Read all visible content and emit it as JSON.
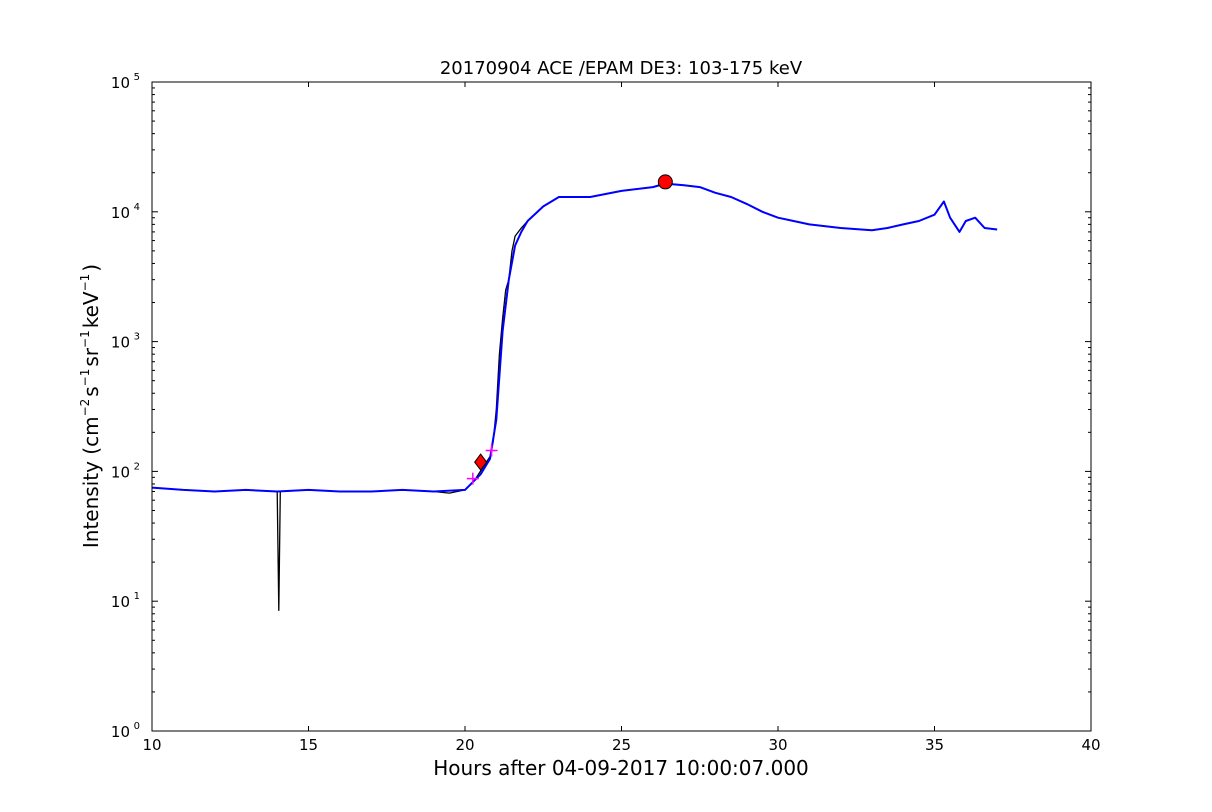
{
  "chart_data": {
    "type": "line",
    "title": "20170904 ACE /EPAM DE3: 103-175 keV",
    "xlabel": "Hours after 04-09-2017 10:00:07.000",
    "ylabel": {
      "prefix": "Intensity (cm",
      "sup1": "−2",
      "mid1": "s",
      "sup2": "−1",
      "mid2": "sr",
      "sup3": "−1",
      "mid3": "keV",
      "sup4": "−1",
      "suffix": ")"
    },
    "xlim": [
      10,
      40
    ],
    "ylim": [
      1,
      100000
    ],
    "yscale": "log",
    "x_ticks": [
      10,
      15,
      20,
      25,
      30,
      35,
      40
    ],
    "x_tick_labels": [
      "10",
      "15",
      "20",
      "25",
      "30",
      "35",
      "40"
    ],
    "y_ticks": [
      1,
      10,
      100,
      1000,
      10000,
      100000
    ],
    "y_tick_labels": [
      {
        "base": "10",
        "exp": "0"
      },
      {
        "base": "10",
        "exp": "1"
      },
      {
        "base": "10",
        "exp": "2"
      },
      {
        "base": "10",
        "exp": "3"
      },
      {
        "base": "10",
        "exp": "4"
      },
      {
        "base": "10",
        "exp": "5"
      }
    ],
    "series": [
      {
        "color": "#000000",
        "style": "raw noisy",
        "x": [
          10.0,
          11.0,
          12.0,
          13.0,
          14.0,
          14.05,
          14.1,
          15.0,
          16.0,
          17.0,
          18.0,
          19.0,
          19.5,
          20.0,
          20.3,
          20.6,
          20.8,
          20.9,
          21.0,
          21.1,
          21.2,
          21.3,
          21.4,
          21.5,
          21.6,
          21.8,
          22.0,
          22.5,
          23.0,
          24.0,
          25.0,
          26.0,
          26.4,
          27.0,
          27.5,
          28.0,
          28.5,
          29.0,
          29.5,
          30.0,
          30.5,
          31.0,
          32.0,
          33.0,
          33.5,
          34.0,
          34.5,
          35.0,
          35.3,
          35.5,
          35.8,
          36.0,
          36.3,
          36.6,
          37.0
        ],
        "y": [
          75,
          72,
          70,
          72,
          70,
          8.5,
          70,
          72,
          70,
          70,
          72,
          70,
          68,
          72,
          85,
          110,
          130,
          170,
          300,
          800,
          1500,
          2500,
          3000,
          5000,
          6500,
          7500,
          8500,
          11000,
          13000,
          13000,
          14500,
          15500,
          16500,
          16000,
          15500,
          14000,
          13000,
          11500,
          10000,
          9000,
          8500,
          8000,
          7500,
          7200,
          7500,
          8000,
          8500,
          9500,
          12000,
          9000,
          7000,
          8500,
          9000,
          7500,
          7300
        ]
      },
      {
        "color": "#0000ff",
        "style": "smoothed",
        "x": [
          10.0,
          11.0,
          12.0,
          13.0,
          14.0,
          15.0,
          16.0,
          17.0,
          18.0,
          19.0,
          20.0,
          20.5,
          20.8,
          21.0,
          21.2,
          21.4,
          21.6,
          21.8,
          22.0,
          22.5,
          23.0,
          24.0,
          25.0,
          26.0,
          26.4,
          27.0,
          27.5,
          28.0,
          28.5,
          29.0,
          29.5,
          30.0,
          30.5,
          31.0,
          32.0,
          33.0,
          33.5,
          34.0,
          34.5,
          35.0,
          35.3,
          35.5,
          35.8,
          36.0,
          36.3,
          36.6,
          37.0
        ],
        "y": [
          75,
          72,
          70,
          72,
          70,
          72,
          70,
          70,
          72,
          70,
          72,
          95,
          125,
          250,
          1200,
          3000,
          5500,
          7000,
          8500,
          11000,
          13000,
          13000,
          14500,
          15500,
          16500,
          16000,
          15500,
          14000,
          13000,
          11500,
          10000,
          9000,
          8500,
          8000,
          7500,
          7200,
          7500,
          8000,
          8500,
          9500,
          12000,
          9000,
          7000,
          8500,
          9000,
          7500,
          7300
        ]
      }
    ],
    "markers": [
      {
        "type": "plus",
        "color": "#ff00ff",
        "x": 20.25,
        "y": 88
      },
      {
        "type": "plus",
        "color": "#ff00ff",
        "x": 20.85,
        "y": 145
      },
      {
        "type": "diamond",
        "color": "#ff0000",
        "x": 20.5,
        "y": 118
      },
      {
        "type": "circle",
        "color": "#ff0000",
        "x": 26.4,
        "y": 17000
      }
    ],
    "grid": false,
    "legend": "none"
  }
}
